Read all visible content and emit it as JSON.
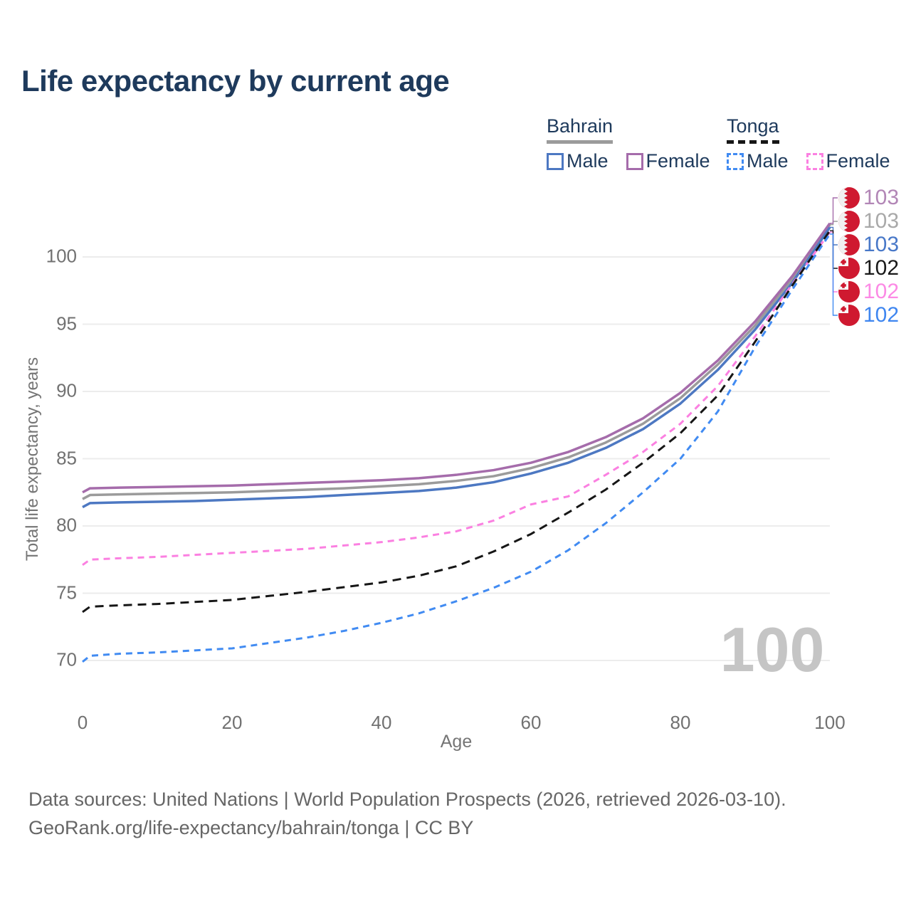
{
  "title": "Life expectancy by current age",
  "legend": {
    "groups": [
      {
        "label": "Bahrain",
        "style": "solid",
        "items": [
          {
            "label": "Male",
            "color": "#4d78c2"
          },
          {
            "label": "Female",
            "color": "#a56cab"
          }
        ]
      },
      {
        "label": "Tonga",
        "style": "dashed",
        "items": [
          {
            "label": "Male",
            "color": "#418bf2"
          },
          {
            "label": "Female",
            "color": "#fb80e1"
          }
        ]
      }
    ]
  },
  "watermark": "100",
  "footer": {
    "line1": "Data sources: United Nations | World Population Prospects (2026, retrieved 2026-03-10).",
    "line2": "GeoRank.org/life-expectancy/bahrain/tonga | CC BY"
  },
  "colors": {
    "title_text": "#1e3a5c",
    "axis_text": "#717171",
    "grid": "#ececec",
    "flag_red": "#cf1930",
    "watermark": "#c5c5c5"
  },
  "chart_data": {
    "type": "line",
    "title": "Life expectancy by current age",
    "xlabel": "Age",
    "ylabel": "Total life expectancy, years",
    "xlim": [
      0,
      100
    ],
    "ylim": [
      69,
      103.5
    ],
    "grid": "horizontal",
    "legend_position": "top-right",
    "xticks": [
      0,
      20,
      40,
      60,
      80,
      100
    ],
    "yticks": [
      70,
      75,
      80,
      85,
      90,
      95,
      100
    ],
    "x": [
      0,
      1,
      5,
      10,
      15,
      20,
      25,
      30,
      35,
      40,
      45,
      50,
      55,
      60,
      65,
      70,
      75,
      80,
      85,
      90,
      95,
      100
    ],
    "series": [
      {
        "name": "bahrain-both",
        "country": "Bahrain",
        "sex": "Both",
        "style": "solid",
        "color": "#9b9b9b",
        "dash": "",
        "width": 3.5,
        "end_label": "103",
        "label_color": "#a9a9a9",
        "flag": "bahrain",
        "label_row": 1,
        "values": [
          82.0,
          82.3,
          82.35,
          82.4,
          82.45,
          82.5,
          82.6,
          82.7,
          82.8,
          82.95,
          83.1,
          83.35,
          83.7,
          84.3,
          85.1,
          86.2,
          87.6,
          89.5,
          92.0,
          94.9,
          98.4,
          102.4
        ]
      },
      {
        "name": "bahrain-female",
        "country": "Bahrain",
        "sex": "Female",
        "style": "solid",
        "color": "#a56cab",
        "dash": "",
        "width": 3.5,
        "end_label": "103",
        "label_color": "#b286b6",
        "flag": "bahrain",
        "label_row": 0,
        "values": [
          82.5,
          82.8,
          82.85,
          82.9,
          82.95,
          83.0,
          83.1,
          83.2,
          83.3,
          83.4,
          83.55,
          83.8,
          84.15,
          84.7,
          85.5,
          86.6,
          88.0,
          89.9,
          92.3,
          95.2,
          98.6,
          102.5
        ]
      },
      {
        "name": "bahrain-male",
        "country": "Bahrain",
        "sex": "Male",
        "style": "solid",
        "color": "#4d78c2",
        "dash": "",
        "width": 3.5,
        "end_label": "103",
        "label_color": "#4878c8",
        "flag": "bahrain",
        "label_row": 2,
        "values": [
          81.4,
          81.7,
          81.75,
          81.8,
          81.85,
          81.95,
          82.05,
          82.15,
          82.3,
          82.45,
          82.6,
          82.85,
          83.25,
          83.9,
          84.7,
          85.8,
          87.2,
          89.1,
          91.6,
          94.6,
          98.1,
          102.2
        ]
      },
      {
        "name": "tonga-female",
        "country": "Tonga",
        "sex": "Female",
        "style": "dashed",
        "color": "#fb80e1",
        "dash": "9 7",
        "width": 3,
        "end_label": "102",
        "label_color": "#fc8ae5",
        "flag": "tonga",
        "label_row": 4,
        "values": [
          77.1,
          77.5,
          77.6,
          77.7,
          77.85,
          78.0,
          78.15,
          78.3,
          78.55,
          78.8,
          79.15,
          79.6,
          80.4,
          81.6,
          82.2,
          83.8,
          85.5,
          87.6,
          90.4,
          94.1,
          98.0,
          101.85
        ]
      },
      {
        "name": "tonga-both",
        "country": "Tonga",
        "sex": "Both",
        "style": "dashed",
        "color": "#161616",
        "dash": "12 8",
        "width": 3,
        "end_label": "102",
        "label_color": "#1a1a1a",
        "flag": "tonga",
        "label_row": 3,
        "values": [
          73.6,
          74.0,
          74.1,
          74.2,
          74.35,
          74.5,
          74.8,
          75.1,
          75.45,
          75.8,
          76.3,
          77.0,
          78.1,
          79.4,
          81.0,
          82.7,
          84.7,
          86.9,
          89.7,
          93.7,
          97.9,
          101.95
        ]
      },
      {
        "name": "tonga-male",
        "country": "Tonga",
        "sex": "Male",
        "style": "dashed",
        "color": "#418bf2",
        "dash": "9 7",
        "width": 3,
        "end_label": "102",
        "label_color": "#3f86f0",
        "flag": "tonga",
        "label_row": 5,
        "values": [
          69.9,
          70.35,
          70.5,
          70.6,
          70.75,
          70.9,
          71.3,
          71.7,
          72.2,
          72.8,
          73.5,
          74.4,
          75.4,
          76.6,
          78.2,
          80.2,
          82.5,
          85.0,
          88.5,
          93.3,
          97.6,
          101.7
        ]
      }
    ]
  }
}
